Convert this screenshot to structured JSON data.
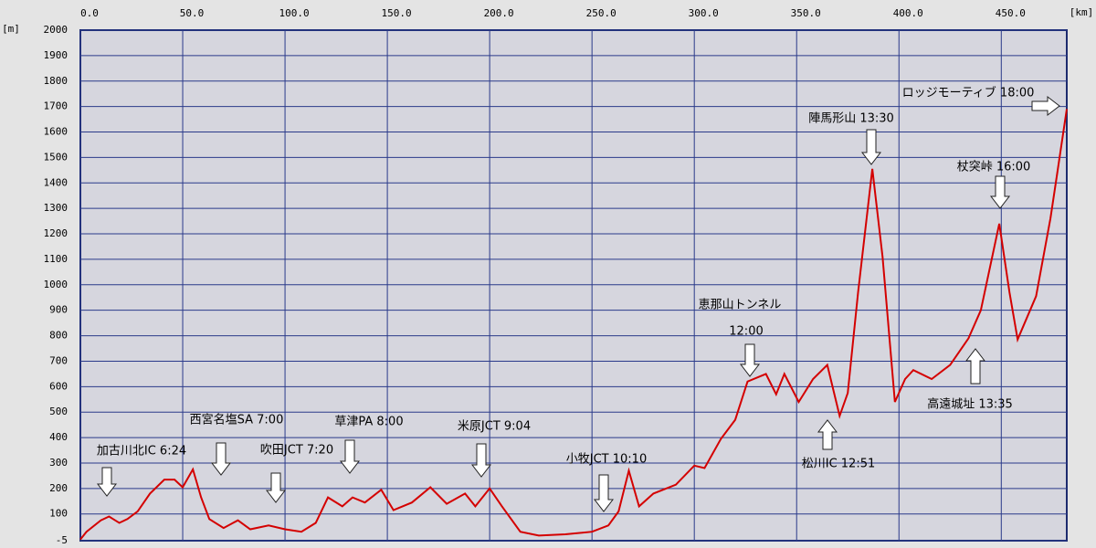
{
  "chart_data": {
    "type": "line",
    "y_unit": "[m]",
    "x_unit": "[km]",
    "x": [
      0,
      3,
      10,
      14,
      19,
      23,
      28,
      34,
      41,
      46,
      50,
      55,
      59,
      63,
      70,
      77,
      83,
      92,
      100,
      108,
      115,
      121,
      128,
      133,
      139,
      147,
      153,
      162,
      171,
      179,
      188,
      193,
      200,
      206,
      215,
      224,
      237,
      250,
      258,
      263,
      268,
      273,
      280,
      291,
      300,
      305,
      313,
      320,
      326,
      335,
      340,
      344,
      351,
      358,
      365,
      371,
      375,
      380,
      387,
      392,
      398,
      403,
      407,
      416,
      425,
      434,
      440,
      449,
      454,
      458,
      467,
      474,
      477,
      482
    ],
    "values": [
      0,
      30,
      75,
      90,
      65,
      80,
      110,
      180,
      235,
      235,
      205,
      275,
      165,
      80,
      45,
      75,
      40,
      55,
      40,
      30,
      65,
      165,
      130,
      165,
      145,
      195,
      115,
      145,
      205,
      140,
      180,
      130,
      200,
      130,
      30,
      15,
      20,
      30,
      55,
      110,
      270,
      130,
      180,
      215,
      290,
      280,
      395,
      470,
      620,
      650,
      570,
      650,
      540,
      630,
      685,
      485,
      575,
      970,
      1455,
      1110,
      540,
      630,
      665,
      630,
      685,
      790,
      900,
      1240,
      970,
      785,
      955,
      1260,
      1420,
      1690
    ],
    "color": "#d40000",
    "xlim": [
      0,
      482
    ],
    "ylim": [
      -5,
      2000
    ],
    "xticks": [
      {
        "value": 0,
        "label": "0.0"
      },
      {
        "value": 50,
        "label": "50.0"
      },
      {
        "value": 100,
        "label": "100.0"
      },
      {
        "value": 150,
        "label": "150.0"
      },
      {
        "value": 200,
        "label": "200.0"
      },
      {
        "value": 250,
        "label": "250.0"
      },
      {
        "value": 300,
        "label": "300.0"
      },
      {
        "value": 350,
        "label": "350.0"
      },
      {
        "value": 400,
        "label": "400.0"
      },
      {
        "value": 450,
        "label": "450.0"
      }
    ],
    "yticks": [
      -5,
      100,
      200,
      300,
      400,
      500,
      600,
      700,
      800,
      900,
      1000,
      1100,
      1200,
      1300,
      1400,
      1500,
      1600,
      1700,
      1800,
      1900,
      2000
    ],
    "grid": true,
    "annotations": [
      "加古川北IC 6:24",
      "西宮名塩SA 7:00",
      "吹田JCT 7:20",
      "草津PA 8:00",
      "米原JCT 9:04",
      "小牧JCT 10:10",
      "恵那山トンネル",
      "12:00",
      "陣馬形山 13:30",
      "杖突峠 16:00",
      "ロッジモーティブ 18:00",
      "松川IC 12:51",
      "高遠城址 13:35"
    ]
  }
}
